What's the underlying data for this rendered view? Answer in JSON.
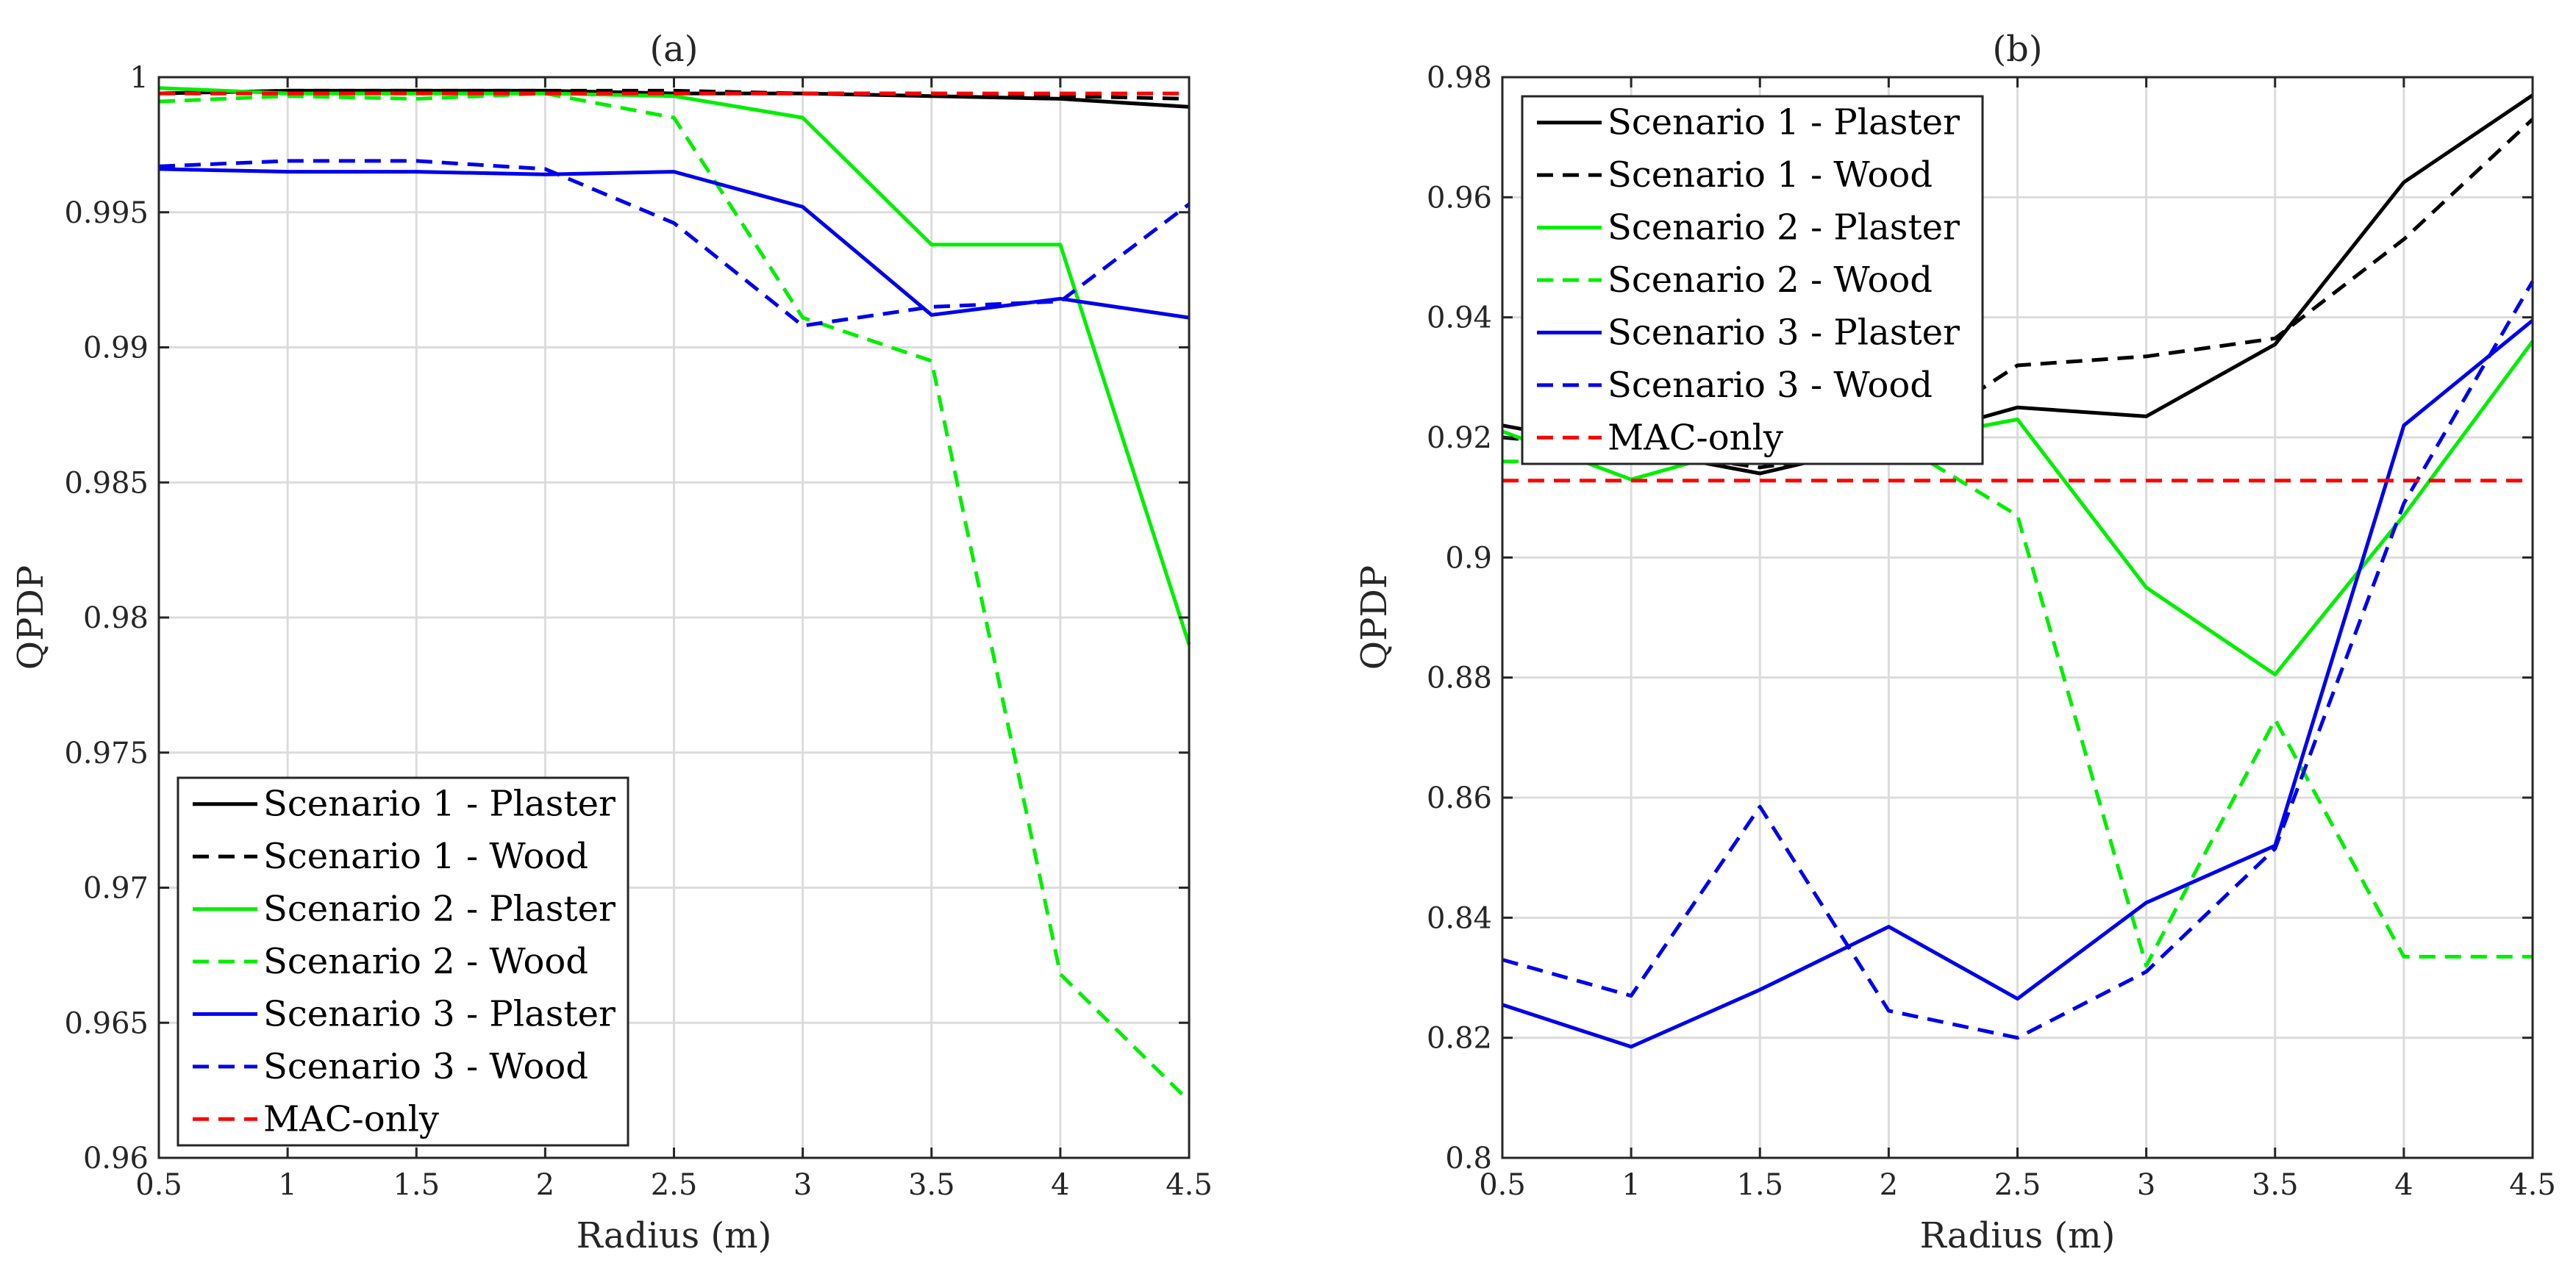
{
  "chart_data": [
    {
      "type": "line",
      "title": "(a)",
      "xlabel": "Radius (m)",
      "ylabel": "QPDP",
      "xlim": [
        0.5,
        4.5
      ],
      "ylim": [
        0.96,
        1.0
      ],
      "xticks": [
        0.5,
        1,
        1.5,
        2,
        2.5,
        3,
        3.5,
        4,
        4.5
      ],
      "xtick_labels": [
        "0.5",
        "1",
        "1.5",
        "2",
        "2.5",
        "3",
        "3.5",
        "4",
        "4.5"
      ],
      "yticks": [
        0.96,
        0.965,
        0.97,
        0.975,
        0.98,
        0.985,
        0.99,
        0.995,
        1.0
      ],
      "ytick_labels": [
        "0.96",
        "0.965",
        "0.97",
        "0.975",
        "0.98",
        "0.985",
        "0.99",
        "0.995",
        "1"
      ],
      "grid": true,
      "legend_position": "bottom-left",
      "x": [
        0.5,
        1,
        1.5,
        2,
        2.5,
        3,
        3.5,
        4,
        4.5
      ],
      "series": [
        {
          "name": "Scenario 1 - Plaster",
          "color": "#000000",
          "dash": "solid",
          "values": [
            0.9994,
            0.9995,
            0.9995,
            0.9995,
            0.9994,
            0.9994,
            0.9993,
            0.9992,
            0.9989
          ]
        },
        {
          "name": "Scenario 1 - Wood",
          "color": "#000000",
          "dash": "dashed",
          "values": [
            0.9994,
            0.9995,
            0.9995,
            0.9995,
            0.9995,
            0.9994,
            0.9994,
            0.9993,
            0.9992
          ]
        },
        {
          "name": "Scenario 2 - Plaster",
          "color": "#00ee00",
          "dash": "solid",
          "values": [
            0.9996,
            0.9994,
            0.9994,
            0.9994,
            0.9993,
            0.9985,
            0.9938,
            0.9938,
            0.979
          ]
        },
        {
          "name": "Scenario 2 - Wood",
          "color": "#00ee00",
          "dash": "dashed",
          "values": [
            0.9991,
            0.9993,
            0.9992,
            0.9994,
            0.9985,
            0.9911,
            0.9895,
            0.9668,
            0.9621
          ]
        },
        {
          "name": "Scenario 3 - Plaster",
          "color": "#0000ee",
          "dash": "solid",
          "values": [
            0.9966,
            0.9965,
            0.9965,
            0.9964,
            0.9965,
            0.9952,
            0.9912,
            0.9918,
            0.9911
          ]
        },
        {
          "name": "Scenario 3 - Wood",
          "color": "#0000ee",
          "dash": "dashed",
          "values": [
            0.9967,
            0.9969,
            0.9969,
            0.9966,
            0.9946,
            0.9908,
            0.9915,
            0.9917,
            0.9953
          ]
        },
        {
          "name": "MAC-only",
          "color": "#ff0000",
          "dash": "dashed",
          "values": [
            0.9994,
            0.9994,
            0.9994,
            0.9994,
            0.9994,
            0.9994,
            0.9994,
            0.9994,
            0.9994
          ]
        }
      ]
    },
    {
      "type": "line",
      "title": "(b)",
      "xlabel": "Radius (m)",
      "ylabel": "QPDP",
      "xlim": [
        0.5,
        4.5
      ],
      "ylim": [
        0.8,
        0.98
      ],
      "xticks": [
        0.5,
        1,
        1.5,
        2,
        2.5,
        3,
        3.5,
        4,
        4.5
      ],
      "xtick_labels": [
        "0.5",
        "1",
        "1.5",
        "2",
        "2.5",
        "3",
        "3.5",
        "4",
        "4.5"
      ],
      "yticks": [
        0.8,
        0.82,
        0.84,
        0.86,
        0.88,
        0.9,
        0.92,
        0.94,
        0.96,
        0.98
      ],
      "ytick_labels": [
        "0.8",
        "0.82",
        "0.84",
        "0.86",
        "0.88",
        "0.9",
        "0.92",
        "0.94",
        "0.96",
        "0.98"
      ],
      "grid": true,
      "legend_position": "top-left",
      "x": [
        0.5,
        1,
        1.5,
        2,
        2.5,
        3,
        3.5,
        4,
        4.5
      ],
      "series": [
        {
          "name": "Scenario 1 - Plaster",
          "color": "#000000",
          "dash": "solid",
          "values": [
            0.922,
            0.918,
            0.914,
            0.919,
            0.925,
            0.9235,
            0.9355,
            0.9625,
            0.977
          ]
        },
        {
          "name": "Scenario 1 - Wood",
          "color": "#000000",
          "dash": "dashed",
          "values": [
            0.92,
            0.918,
            0.915,
            0.918,
            0.932,
            0.9335,
            0.9365,
            0.953,
            0.973
          ]
        },
        {
          "name": "Scenario 2 - Plaster",
          "color": "#00ee00",
          "dash": "solid",
          "values": [
            0.921,
            0.913,
            0.919,
            0.919,
            0.923,
            0.895,
            0.8805,
            0.907,
            0.936
          ]
        },
        {
          "name": "Scenario 2 - Wood",
          "color": "#00ee00",
          "dash": "dashed",
          "values": [
            0.916,
            0.916,
            0.917,
            0.92,
            0.907,
            0.832,
            0.873,
            0.8335,
            0.8335
          ]
        },
        {
          "name": "Scenario 3 - Plaster",
          "color": "#0000ee",
          "dash": "solid",
          "values": [
            0.8255,
            0.8185,
            0.828,
            0.8385,
            0.8265,
            0.8425,
            0.852,
            0.922,
            0.9395
          ]
        },
        {
          "name": "Scenario 3 - Wood",
          "color": "#0000ee",
          "dash": "dashed",
          "values": [
            0.833,
            0.827,
            0.8585,
            0.8245,
            0.82,
            0.831,
            0.8515,
            0.909,
            0.946
          ]
        },
        {
          "name": "MAC-only",
          "color": "#ff0000",
          "dash": "dashed",
          "values": [
            0.9128,
            0.9128,
            0.9128,
            0.9128,
            0.9128,
            0.9128,
            0.9128,
            0.9128,
            0.9128
          ]
        }
      ]
    }
  ]
}
